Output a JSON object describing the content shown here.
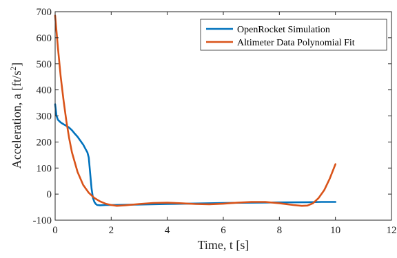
{
  "chart_data": {
    "type": "line",
    "xlabel": "Time, t [s]",
    "ylabel_main": "Acceleration, a [ft/s",
    "ylabel_sup": "2",
    "ylabel_close": "]",
    "xlim": [
      0,
      12
    ],
    "ylim": [
      -100,
      700
    ],
    "xticks": [
      0,
      2,
      4,
      6,
      8,
      10,
      12
    ],
    "yticks": [
      -100,
      0,
      100,
      200,
      300,
      400,
      500,
      600,
      700
    ],
    "grid": false,
    "legend_position": "top-right",
    "series": [
      {
        "name": "OpenRocket Simulation",
        "color": "#0072BD",
        "x": [
          0,
          0.05,
          0.1,
          0.2,
          0.3,
          0.4,
          0.5,
          0.6,
          0.7,
          0.8,
          0.9,
          1.0,
          1.1,
          1.15,
          1.2,
          1.25,
          1.3,
          1.35,
          1.4,
          1.45,
          1.5,
          1.6,
          1.8,
          2.0,
          2.5,
          3.0,
          4.0,
          5.0,
          6.0,
          7.0,
          8.0,
          9.0,
          9.5,
          10.0
        ],
        "y": [
          345,
          300,
          285,
          275,
          268,
          262,
          255,
          245,
          232,
          220,
          205,
          190,
          170,
          160,
          140,
          80,
          20,
          -15,
          -30,
          -38,
          -42,
          -43,
          -42,
          -42,
          -41,
          -40,
          -38,
          -36,
          -34,
          -33,
          -32,
          -31,
          -30,
          -30
        ]
      },
      {
        "name": "Altimeter Data Polynomial Fit",
        "color": "#D95319",
        "x": [
          0,
          0.1,
          0.2,
          0.3,
          0.4,
          0.5,
          0.6,
          0.8,
          1.0,
          1.2,
          1.4,
          1.6,
          1.8,
          2.0,
          2.2,
          2.5,
          3.0,
          3.5,
          4.0,
          4.5,
          5.0,
          5.5,
          6.0,
          6.5,
          7.0,
          7.5,
          8.0,
          8.5,
          8.8,
          9.0,
          9.2,
          9.4,
          9.6,
          9.8,
          10.0
        ],
        "y": [
          685,
          560,
          450,
          360,
          280,
          215,
          160,
          85,
          35,
          5,
          -15,
          -28,
          -37,
          -42,
          -45,
          -43,
          -38,
          -34,
          -33,
          -35,
          -38,
          -39,
          -37,
          -33,
          -30,
          -30,
          -35,
          -42,
          -45,
          -44,
          -35,
          -15,
          15,
          60,
          115
        ]
      }
    ]
  }
}
